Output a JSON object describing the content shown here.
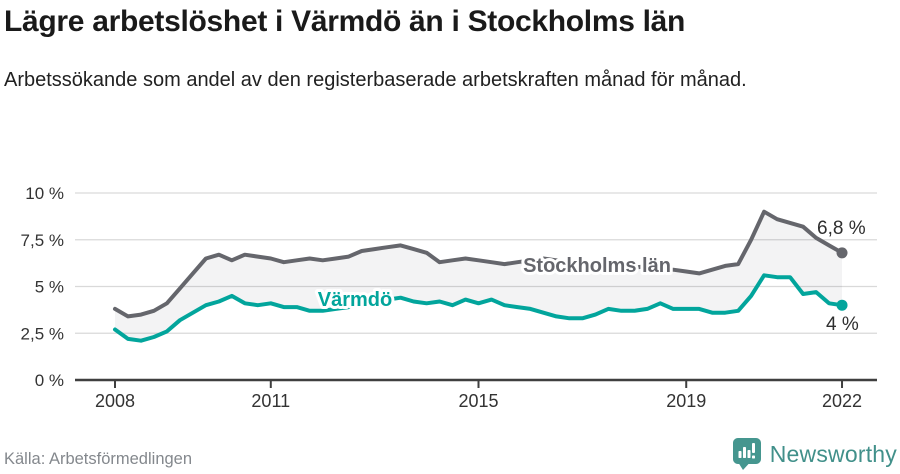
{
  "header": {
    "title": "Lägre arbetslöshet i Värmdö än i Stockholms län",
    "subtitle": "Arbetssökande som andel av den registerbaserade arbetskraften månad för månad."
  },
  "chart_data": {
    "type": "line",
    "x_unit": "decimal_year",
    "x": [
      2008,
      2008.25,
      2008.5,
      2008.75,
      2009,
      2009.25,
      2009.5,
      2009.75,
      2010,
      2010.25,
      2010.5,
      2010.75,
      2011,
      2011.25,
      2011.5,
      2011.75,
      2012,
      2012.25,
      2012.5,
      2012.75,
      2013,
      2013.25,
      2013.5,
      2013.75,
      2014,
      2014.25,
      2014.5,
      2014.75,
      2015,
      2015.25,
      2015.5,
      2015.75,
      2016,
      2016.25,
      2016.5,
      2016.75,
      2017,
      2017.25,
      2017.5,
      2017.75,
      2018,
      2018.25,
      2018.5,
      2018.75,
      2019,
      2019.25,
      2019.5,
      2019.75,
      2020,
      2020.25,
      2020.5,
      2020.75,
      2021,
      2021.25,
      2021.5,
      2021.75,
      2022
    ],
    "series": [
      {
        "name": "Stockholms län",
        "color": "#65666c",
        "end_value_label": "6,8 %",
        "end_value": 6.8,
        "values": [
          3.8,
          3.4,
          3.5,
          3.7,
          4.1,
          4.9,
          5.7,
          6.5,
          6.7,
          6.4,
          6.7,
          6.6,
          6.5,
          6.3,
          6.4,
          6.5,
          6.4,
          6.5,
          6.6,
          6.9,
          7.0,
          7.1,
          7.2,
          7.0,
          6.8,
          6.3,
          6.4,
          6.5,
          6.4,
          6.3,
          6.2,
          6.3,
          6.4,
          6.5,
          6.4,
          6.3,
          6.2,
          6.3,
          6.2,
          6.1,
          6.0,
          6.1,
          5.9,
          5.9,
          5.8,
          5.7,
          5.9,
          6.1,
          6.2,
          7.5,
          9.0,
          8.6,
          8.4,
          8.2,
          7.6,
          7.2,
          6.8
        ]
      },
      {
        "name": "Värmdö",
        "color": "#02a59c",
        "end_value_label": "4 %",
        "end_value": 4.0,
        "values": [
          2.7,
          2.2,
          2.1,
          2.3,
          2.6,
          3.2,
          3.6,
          4.0,
          4.2,
          4.5,
          4.1,
          4.0,
          4.1,
          3.9,
          3.9,
          3.7,
          3.7,
          3.8,
          3.9,
          4.1,
          4.2,
          4.3,
          4.4,
          4.2,
          4.1,
          4.2,
          4.0,
          4.3,
          4.1,
          4.3,
          4.0,
          3.9,
          3.8,
          3.6,
          3.4,
          3.3,
          3.3,
          3.5,
          3.8,
          3.7,
          3.7,
          3.8,
          4.1,
          3.8,
          3.8,
          3.8,
          3.6,
          3.6,
          3.7,
          4.5,
          5.6,
          5.5,
          5.5,
          4.6,
          4.7,
          4.1,
          4.0
        ]
      }
    ],
    "ylim": [
      0,
      10
    ],
    "yticks": [
      {
        "value": 0,
        "label": "0 %"
      },
      {
        "value": 2.5,
        "label": "2,5 %"
      },
      {
        "value": 5,
        "label": "5 %"
      },
      {
        "value": 7.5,
        "label": "7,5 %"
      },
      {
        "value": 10,
        "label": "10 %"
      }
    ],
    "xticks": [
      {
        "value": 2008,
        "label": "2008"
      },
      {
        "value": 2011,
        "label": "2011"
      },
      {
        "value": 2015,
        "label": "2015"
      },
      {
        "value": 2019,
        "label": "2019"
      },
      {
        "value": 2022,
        "label": "2022"
      }
    ],
    "grid": true,
    "legend": "inline-labels",
    "area_between_series": true
  },
  "footer": {
    "source": "Källa: Arbetsförmedlingen",
    "brand": "Newsworthy"
  },
  "colors": {
    "grid": "#d9d9d9",
    "axis": "#3f3f3f",
    "tick_text": "#333333",
    "end_label_text": "#2e2e2e",
    "area_fill": "#1c1c28",
    "brand_teal": "#45968f"
  }
}
